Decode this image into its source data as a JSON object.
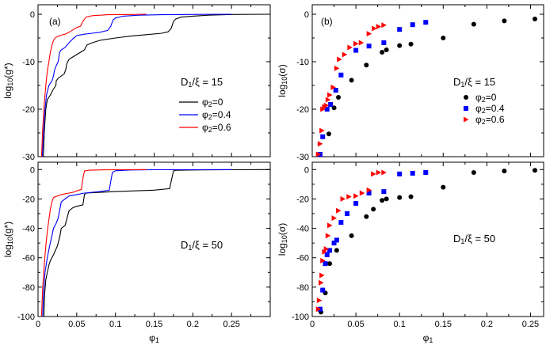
{
  "colors": {
    "phi0": "#000000",
    "phi04": "#0000ff",
    "phi06": "#ff0000",
    "frame": "#000000"
  },
  "chart_data": [
    {
      "id": "a_top",
      "type": "line",
      "panel_label": "(a)",
      "xlim": [
        0,
        0.3
      ],
      "ylim": [
        -30,
        2
      ],
      "xticks": [
        0,
        0.05,
        0.1,
        0.15,
        0.2,
        0.25
      ],
      "xtick_labels": [],
      "yticks": [
        0,
        -10,
        -20,
        -30
      ],
      "ytick_labels": [
        "0",
        "-10",
        "-20",
        "-30"
      ],
      "ylabel_base": "log",
      "ylabel_sub": "10",
      "ylabel_arg": "(g*)",
      "annotation": {
        "main": "D",
        "sub": "1",
        "rest": "/ξ = 15"
      },
      "legend": {
        "position": "middle-right",
        "entries": [
          {
            "series": 0,
            "sym": "φ",
            "sub": "2",
            "rest": "=0"
          },
          {
            "series": 1,
            "sym": "φ",
            "sub": "2",
            "rest": "=0.4"
          },
          {
            "series": 2,
            "sym": "φ",
            "sub": "2",
            "rest": "=0.6"
          }
        ]
      },
      "series": [
        {
          "name": "φ2=0",
          "color_key": "phi0",
          "x": [
            0.0069,
            0.008,
            0.01,
            0.012,
            0.016,
            0.019,
            0.021,
            0.023,
            0.0235,
            0.026,
            0.03,
            0.034,
            0.036,
            0.037,
            0.04,
            0.045,
            0.05,
            0.055,
            0.06,
            0.063,
            0.07,
            0.08,
            0.1,
            0.12,
            0.14,
            0.16,
            0.168,
            0.172,
            0.175,
            0.178,
            0.185,
            0.2,
            0.22,
            0.25,
            0.3
          ],
          "y": [
            -30,
            -25,
            -20,
            -18,
            -17,
            -16,
            -15.5,
            -15,
            -14,
            -13.5,
            -13,
            -12.5,
            -11.5,
            -10.5,
            -9.5,
            -9,
            -8.5,
            -8,
            -7.5,
            -6.5,
            -6,
            -5.5,
            -5,
            -4.6,
            -4.3,
            -4,
            -3.7,
            -3,
            -1.5,
            -1,
            -0.6,
            -0.4,
            -0.2,
            -0.05,
            0
          ]
        },
        {
          "name": "φ2=0.4",
          "color_key": "phi04",
          "x": [
            0.0055,
            0.007,
            0.009,
            0.011,
            0.014,
            0.018,
            0.02,
            0.021,
            0.023,
            0.026,
            0.028,
            0.03,
            0.035,
            0.04,
            0.045,
            0.05,
            0.06,
            0.07,
            0.08,
            0.09,
            0.094,
            0.097,
            0.1,
            0.11,
            0.13,
            0.16,
            0.2,
            0.25
          ],
          "y": [
            -30,
            -25,
            -20,
            -17,
            -15,
            -14,
            -13,
            -12,
            -11,
            -10,
            -8,
            -7.5,
            -7,
            -6,
            -5.2,
            -4.5,
            -4.2,
            -4,
            -3.8,
            -3.4,
            -2.5,
            -1.2,
            -0.8,
            -0.4,
            -0.2,
            -0.1,
            -0.05,
            0
          ]
        },
        {
          "name": "φ2=0.6",
          "color_key": "phi06",
          "x": [
            0.0045,
            0.006,
            0.008,
            0.01,
            0.012,
            0.014,
            0.016,
            0.018,
            0.02,
            0.022,
            0.025,
            0.03,
            0.035,
            0.04,
            0.045,
            0.05,
            0.055,
            0.058,
            0.062,
            0.07,
            0.09,
            0.12,
            0.14
          ],
          "y": [
            -30,
            -24,
            -19,
            -15,
            -12,
            -10,
            -8,
            -6.5,
            -5.5,
            -5,
            -4.7,
            -4.4,
            -4.2,
            -3.8,
            -3.3,
            -2.8,
            -2.5,
            -1.5,
            -0.6,
            -0.3,
            -0.1,
            -0.05,
            0
          ]
        }
      ]
    },
    {
      "id": "a_bottom",
      "type": "line",
      "xlim": [
        0,
        0.3
      ],
      "ylim": [
        -100,
        5
      ],
      "xticks": [
        0,
        0.05,
        0.1,
        0.15,
        0.2,
        0.25
      ],
      "xtick_labels": [
        "0",
        "0.05",
        "0.1",
        "0.15",
        "0.2",
        "0.25"
      ],
      "yticks": [
        0,
        -20,
        -40,
        -60,
        -80,
        -100
      ],
      "ytick_labels": [
        "0",
        "-20",
        "-40",
        "-60",
        "-80",
        "-100"
      ],
      "xlabel_sym": "φ",
      "xlabel_sub": "1",
      "ylabel_base": "log",
      "ylabel_sub": "10",
      "ylabel_arg": "(g*)",
      "annotation": {
        "main": "D",
        "sub": "1",
        "rest": "/ξ = 50"
      },
      "series": [
        {
          "name": "φ2=0",
          "color_key": "phi0",
          "x": [
            0.0075,
            0.0085,
            0.01,
            0.012,
            0.014,
            0.016,
            0.02,
            0.025,
            0.028,
            0.03,
            0.035,
            0.038,
            0.04,
            0.045,
            0.05,
            0.058,
            0.06,
            0.062,
            0.08,
            0.1,
            0.15,
            0.17,
            0.175,
            0.178,
            0.2,
            0.25,
            0.3
          ],
          "y": [
            -100,
            -85,
            -75,
            -70,
            -65,
            -62,
            -58,
            -52,
            -46,
            -40,
            -38,
            -32,
            -28,
            -26,
            -25,
            -24,
            -17,
            -16,
            -15.5,
            -15,
            -14,
            -13,
            -1,
            -0.5,
            -0.3,
            -0.1,
            0
          ]
        },
        {
          "name": "φ2=0.4",
          "color_key": "phi04",
          "x": [
            0.006,
            0.007,
            0.009,
            0.012,
            0.015,
            0.018,
            0.02,
            0.024,
            0.026,
            0.03,
            0.04,
            0.05,
            0.06,
            0.08,
            0.092,
            0.094,
            0.096,
            0.1,
            0.12,
            0.15,
            0.2,
            0.25
          ],
          "y": [
            -100,
            -85,
            -70,
            -60,
            -52,
            -45,
            -40,
            -36,
            -33,
            -22,
            -18,
            -17,
            -16,
            -15,
            -14,
            -8,
            -2,
            -0.8,
            -0.3,
            -0.1,
            -0.05,
            0
          ]
        },
        {
          "name": "φ2=0.6",
          "color_key": "phi06",
          "x": [
            0.0045,
            0.006,
            0.008,
            0.01,
            0.012,
            0.014,
            0.016,
            0.018,
            0.02,
            0.025,
            0.03,
            0.035,
            0.04,
            0.045,
            0.05,
            0.056,
            0.058,
            0.06,
            0.065,
            0.08,
            0.1,
            0.14
          ],
          "y": [
            -100,
            -80,
            -65,
            -52,
            -42,
            -34,
            -27,
            -22,
            -19,
            -18,
            -17,
            -16.5,
            -16,
            -15.5,
            -14.5,
            -13.5,
            -6,
            -1,
            -0.5,
            -0.2,
            -0.1,
            0
          ]
        }
      ]
    },
    {
      "id": "b_top",
      "type": "scatter",
      "panel_label": "(b)",
      "xlim": [
        0,
        0.265
      ],
      "ylim": [
        -30,
        2
      ],
      "xticks": [
        0,
        0.05,
        0.1,
        0.15,
        0.2,
        0.25
      ],
      "xtick_labels": [],
      "yticks": [
        0,
        -10,
        -20,
        -30
      ],
      "ytick_labels": [
        "0",
        "-10",
        "-20",
        "-30"
      ],
      "ylabel_base": "log",
      "ylabel_sub": "10",
      "ylabel_arg": "(σ)",
      "annotation": {
        "main": "D",
        "sub": "1",
        "rest": "/ξ = 15"
      },
      "legend": {
        "position": "middle-right",
        "entries": [
          {
            "series": 0,
            "sym": "φ",
            "sub": "2",
            "rest": "=0"
          },
          {
            "series": 1,
            "sym": "φ",
            "sub": "2",
            "rest": "=0.4"
          },
          {
            "series": 2,
            "sym": "φ",
            "sub": "2",
            "rest": "=0.6"
          }
        ]
      },
      "series": [
        {
          "name": "φ2=0",
          "color_key": "phi0",
          "marker": "circle",
          "x": [
            0.019,
            0.025,
            0.03,
            0.045,
            0.062,
            0.08,
            0.085,
            0.1,
            0.113,
            0.15,
            0.185,
            0.22,
            0.255
          ],
          "y": [
            -25.2,
            -19.7,
            -17.5,
            -13.9,
            -10.7,
            -8,
            -7.5,
            -6.6,
            -6.3,
            -5,
            -2.1,
            -1.4,
            -1
          ]
        },
        {
          "name": "φ2=0.4",
          "color_key": "phi04",
          "marker": "square",
          "x": [
            0.009,
            0.012,
            0.017,
            0.021,
            0.027,
            0.033,
            0.05,
            0.065,
            0.082,
            0.1,
            0.115,
            0.13
          ],
          "y": [
            -29.5,
            -25.8,
            -20,
            -19,
            -16,
            -12.8,
            -7.6,
            -6.7,
            -6,
            -3.2,
            -2.2,
            -1.7
          ]
        },
        {
          "name": "φ2=0.6",
          "color_key": "phi06",
          "marker": "triangle",
          "x": [
            0.007,
            0.009,
            0.011,
            0.012,
            0.014,
            0.016,
            0.018,
            0.02,
            0.024,
            0.028,
            0.031,
            0.037,
            0.043,
            0.05,
            0.056,
            0.065,
            0.071,
            0.076,
            0.082
          ],
          "y": [
            -29.5,
            -27.3,
            -24.5,
            -20,
            -19.5,
            -19.2,
            -18,
            -17,
            -15.4,
            -11.4,
            -9.5,
            -8.5,
            -7,
            -6.2,
            -6,
            -4.1,
            -3,
            -2.6,
            -2.3
          ]
        }
      ]
    },
    {
      "id": "b_bottom",
      "type": "scatter",
      "xlim": [
        0,
        0.265
      ],
      "ylim": [
        -100,
        5
      ],
      "xticks": [
        0,
        0.05,
        0.1,
        0.15,
        0.2,
        0.25
      ],
      "xtick_labels": [
        "0",
        "0.05",
        "0.1",
        "0.15",
        "0.2",
        "0.25"
      ],
      "yticks": [
        0,
        -20,
        -40,
        -60,
        -80,
        -100
      ],
      "ytick_labels": [
        "0",
        "-20",
        "-40",
        "-60",
        "-80",
        "-100"
      ],
      "xlabel_sym": "φ",
      "xlabel_sub": "1",
      "ylabel_base": "log",
      "ylabel_sub": "10",
      "ylabel_arg": "(σ)",
      "annotation": {
        "main": "D",
        "sub": "1",
        "rest": "/ξ = 50"
      },
      "series": [
        {
          "name": "φ2=0",
          "color_key": "phi0",
          "marker": "circle",
          "x": [
            0.01,
            0.015,
            0.02,
            0.028,
            0.045,
            0.062,
            0.07,
            0.08,
            0.085,
            0.1,
            0.113,
            0.15,
            0.185,
            0.22,
            0.255
          ],
          "y": [
            -97,
            -84,
            -64,
            -55,
            -45,
            -32,
            -27,
            -21,
            -20,
            -19,
            -18.5,
            -12,
            -2,
            -1,
            -0.5
          ]
        },
        {
          "name": "φ2=0.4",
          "color_key": "phi04",
          "marker": "square",
          "x": [
            0.009,
            0.012,
            0.015,
            0.017,
            0.02,
            0.025,
            0.028,
            0.033,
            0.04,
            0.05,
            0.065,
            0.082,
            0.1,
            0.115,
            0.13
          ],
          "y": [
            -95,
            -82,
            -64,
            -58,
            -55,
            -50,
            -48,
            -36,
            -30,
            -23,
            -16,
            -15,
            -3,
            -2.5,
            -2
          ]
        },
        {
          "name": "φ2=0.6",
          "color_key": "phi06",
          "marker": "triangle",
          "x": [
            0.007,
            0.008,
            0.01,
            0.011,
            0.012,
            0.014,
            0.016,
            0.018,
            0.02,
            0.025,
            0.03,
            0.035,
            0.042,
            0.05,
            0.057,
            0.065,
            0.07,
            0.076,
            0.082
          ],
          "y": [
            -95,
            -89,
            -77,
            -72,
            -62,
            -56,
            -54,
            -45,
            -38,
            -33,
            -28,
            -20,
            -18.5,
            -18,
            -16,
            -14,
            -3,
            -2,
            -2
          ]
        }
      ]
    }
  ]
}
